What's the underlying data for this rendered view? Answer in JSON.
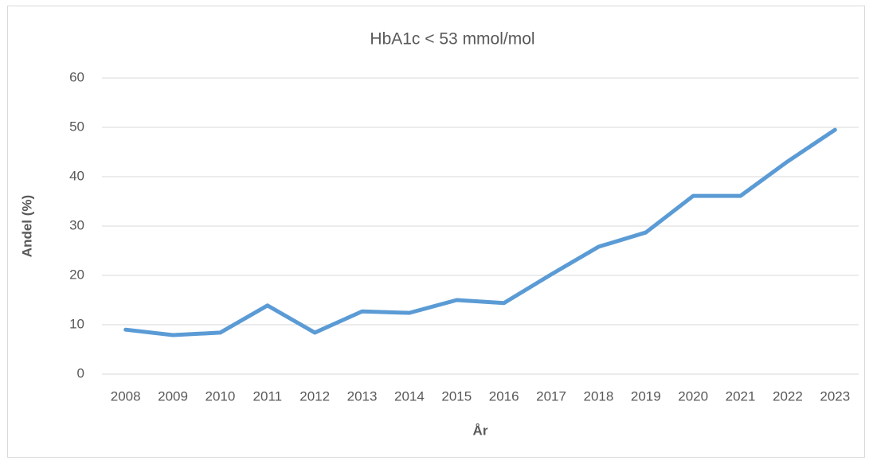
{
  "chart_data": {
    "type": "line",
    "title": "HbA1c < 53 mmol/mol",
    "x_label": "År",
    "y_label": "Andel (%)",
    "categories": [
      "2008",
      "2009",
      "2010",
      "2011",
      "2012",
      "2013",
      "2014",
      "2015",
      "2016",
      "2017",
      "2018",
      "2019",
      "2020",
      "2021",
      "2022",
      "2023"
    ],
    "series": [
      {
        "name": "HbA1c < 53 mmol/mol",
        "color": "#5b9bd5",
        "values": [
          9.0,
          7.9,
          8.4,
          13.9,
          8.4,
          12.7,
          12.4,
          15.0,
          14.4,
          20.2,
          25.8,
          28.7,
          36.1,
          36.1,
          43.1,
          49.5
        ]
      }
    ],
    "ylim": [
      0,
      60
    ],
    "yticks": [
      0,
      10,
      20,
      30,
      40,
      50,
      60
    ],
    "grid": true
  }
}
